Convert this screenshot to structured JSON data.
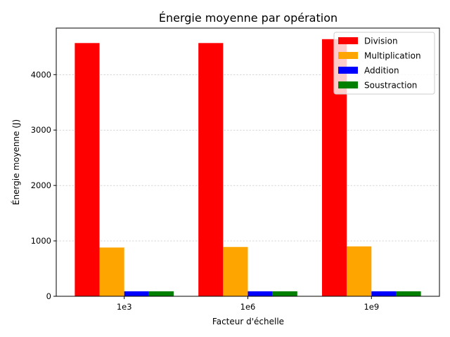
{
  "chart_data": {
    "type": "bar",
    "title": "Énergie moyenne par opération",
    "xlabel": "Facteur d'échelle",
    "ylabel": "Énergie moyenne (J)",
    "categories": [
      "1e3",
      "1e6",
      "1e9"
    ],
    "ylim": [
      0,
      4840
    ],
    "yticks": [
      0,
      1000,
      2000,
      3000,
      4000
    ],
    "grid": "y-major-dashed",
    "legend_position": "top-right",
    "series": [
      {
        "name": "Division",
        "color": "#ff0000",
        "values": [
          4570,
          4570,
          4640
        ]
      },
      {
        "name": "Multiplication",
        "color": "#ffa500",
        "values": [
          880,
          890,
          900
        ]
      },
      {
        "name": "Addition",
        "color": "#0000ff",
        "values": [
          90,
          90,
          90
        ]
      },
      {
        "name": "Soustraction",
        "color": "#008000",
        "values": [
          90,
          90,
          90
        ]
      }
    ]
  }
}
